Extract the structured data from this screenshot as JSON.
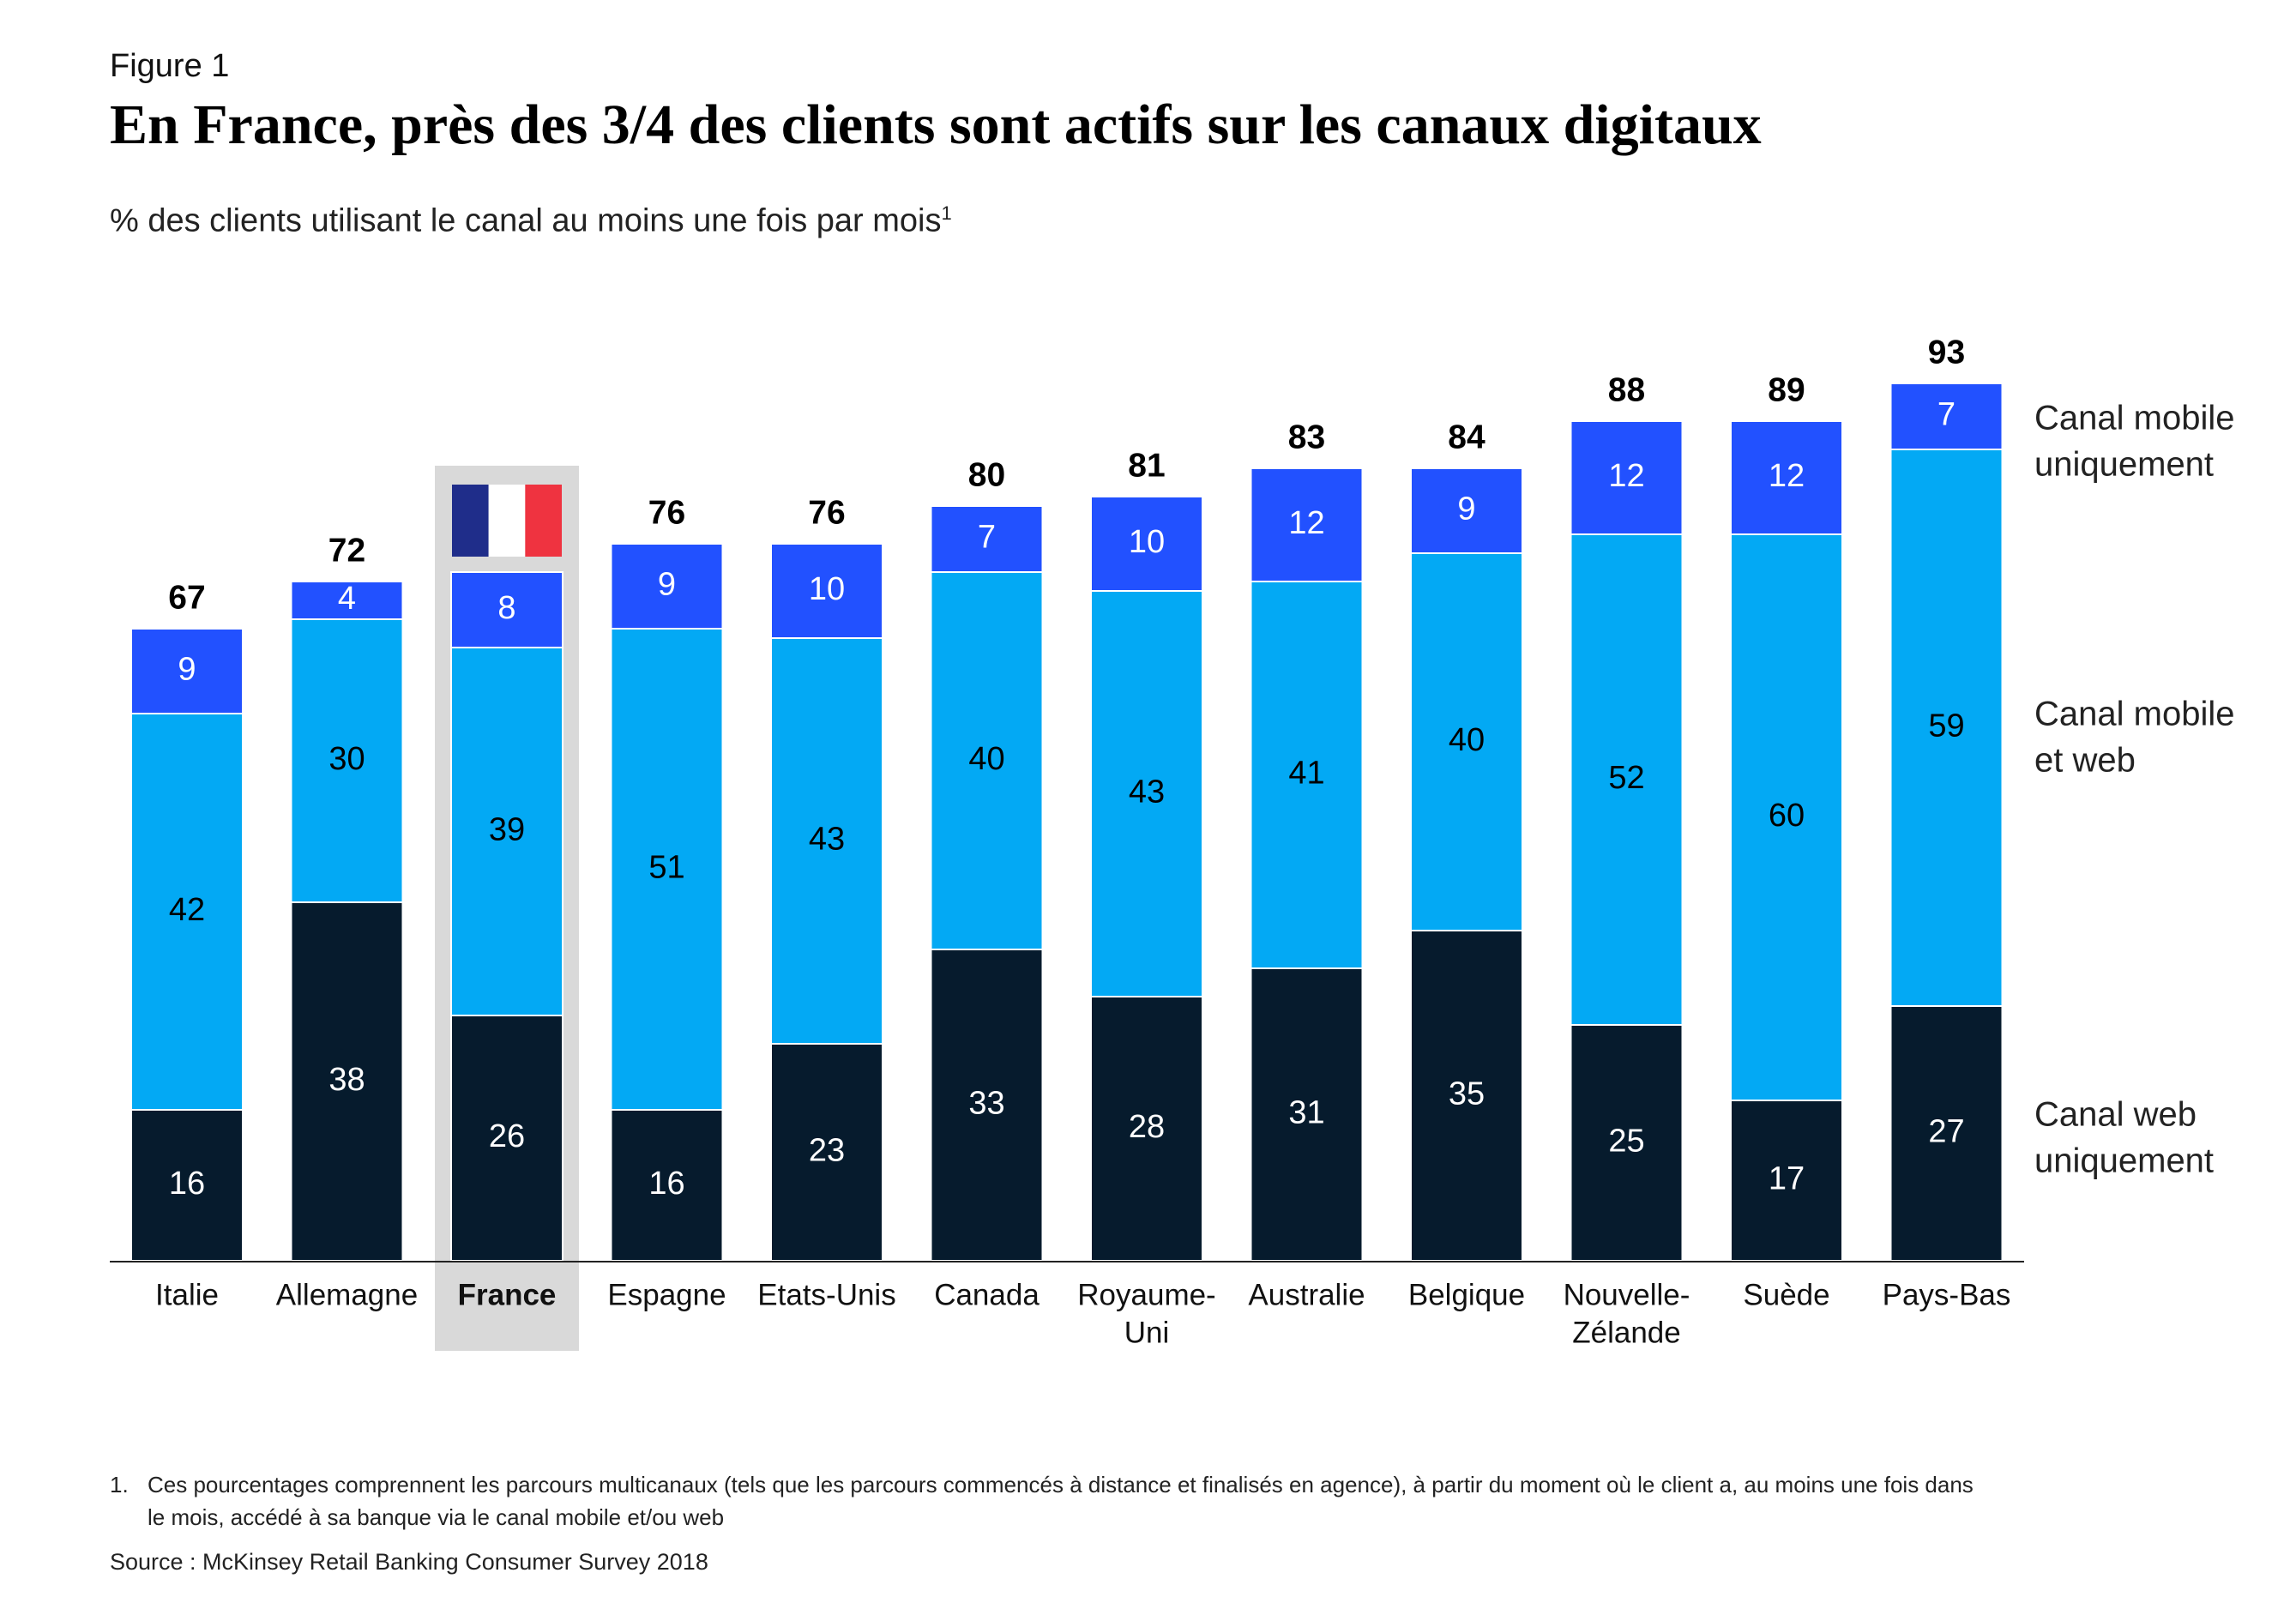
{
  "figure_label": "Figure 1",
  "title": "En France, près des 3/4 des clients sont actifs sur les canaux digitaux",
  "subtitle": "% des clients utilisant le canal au moins une fois par mois",
  "subtitle_sup": "1",
  "highlight_category": "France",
  "colors": {
    "web_only": "#061b2d",
    "mobile_and_web": "#03a9f4",
    "mobile_only": "#2251ff",
    "highlight_bg": "#d9d9d9",
    "flag_blue": "#1f2d8a",
    "flag_white": "#ffffff",
    "flag_red": "#ef3340"
  },
  "chart_data": {
    "type": "bar",
    "stacked": true,
    "categories": [
      "Italie",
      "Allemagne",
      "France",
      "Espagne",
      "Etats-Unis",
      "Canada",
      "Royaume-\nUni",
      "Australie",
      "Belgique",
      "Nouvelle-\nZélande",
      "Suède",
      "Pays-Bas"
    ],
    "series": [
      {
        "name": "Canal web uniquement",
        "values": [
          16,
          38,
          26,
          16,
          23,
          33,
          28,
          31,
          35,
          25,
          17,
          27
        ]
      },
      {
        "name": "Canal mobile et web",
        "values": [
          42,
          30,
          39,
          51,
          43,
          40,
          43,
          41,
          40,
          52,
          60,
          59
        ]
      },
      {
        "name": "Canal mobile uniquement",
        "values": [
          9,
          4,
          8,
          9,
          10,
          7,
          10,
          12,
          9,
          12,
          12,
          7
        ]
      }
    ],
    "totals": [
      67,
      72,
      null,
      76,
      76,
      80,
      81,
      83,
      84,
      88,
      89,
      93
    ],
    "legend_labels": {
      "web_only": [
        "Canal web",
        "uniquement"
      ],
      "mobile_and_web": [
        "Canal mobile",
        "et web"
      ],
      "mobile_only": [
        "Canal mobile",
        "uniquement"
      ]
    },
    "legend_position": "right",
    "ylim": [
      0,
      100
    ],
    "grid": false
  },
  "footnote": {
    "number": "1.",
    "text": "Ces pourcentages comprennent les parcours multicanaux (tels que les parcours commencés à distance et finalisés en agence), à partir du moment où le client a, au moins une fois dans le mois, accédé à sa banque via le canal mobile et/ou web"
  },
  "source": "Source : McKinsey Retail Banking Consumer Survey 2018"
}
